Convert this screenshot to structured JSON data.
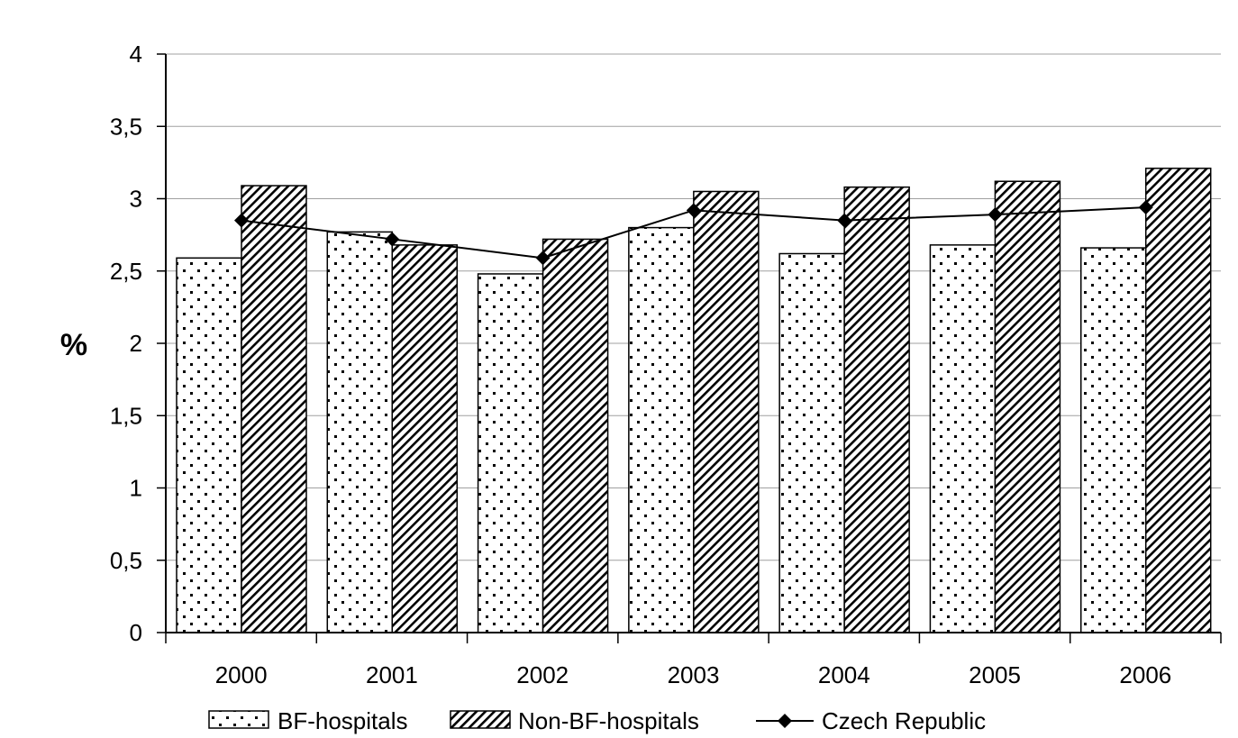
{
  "chart_data": {
    "type": "bar",
    "title": "",
    "xlabel": "",
    "ylabel": "%",
    "ylim": [
      0,
      4
    ],
    "y_ticks": [
      "0",
      "0,5",
      "1",
      "1,5",
      "2",
      "2,5",
      "3",
      "3,5",
      "4"
    ],
    "grid": "horizontal",
    "legend_position": "bottom",
    "categories": [
      "2000",
      "2001",
      "2002",
      "2003",
      "2004",
      "2005",
      "2006"
    ],
    "series": [
      {
        "name": "BF-hospitals",
        "kind": "bar",
        "pattern": "dots",
        "values": [
          2.59,
          2.77,
          2.48,
          2.8,
          2.62,
          2.68,
          2.66
        ]
      },
      {
        "name": "Non-BF-hospitals",
        "kind": "bar",
        "pattern": "diagonal-hatch",
        "values": [
          3.09,
          2.68,
          2.72,
          3.05,
          3.08,
          3.12,
          3.21
        ]
      },
      {
        "name": "Czech Republic",
        "kind": "line",
        "marker": "diamond",
        "values": [
          2.85,
          2.72,
          2.59,
          2.92,
          2.85,
          2.89,
          2.94
        ]
      }
    ]
  }
}
